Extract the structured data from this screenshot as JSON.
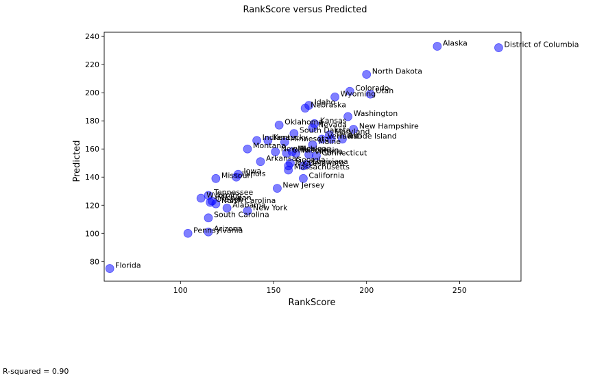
{
  "chart_data": {
    "type": "scatter",
    "title": "RankScore versus Predicted",
    "xlabel": "RankScore",
    "ylabel": "Predicted",
    "xlim": [
      59,
      283
    ],
    "ylim": [
      66,
      243
    ],
    "xticks": [
      100,
      150,
      200,
      250
    ],
    "yticks": [
      80,
      100,
      120,
      140,
      160,
      180,
      200,
      220,
      240
    ],
    "grid": false,
    "marker_color": "#0000ff",
    "points": [
      {
        "label": "Alaska",
        "x": 238,
        "y": 233
      },
      {
        "label": "District of Columbia",
        "x": 271,
        "y": 232
      },
      {
        "label": "North Dakota",
        "x": 200,
        "y": 213
      },
      {
        "label": "Colorado",
        "x": 191,
        "y": 201
      },
      {
        "label": "Utah",
        "x": 202,
        "y": 199
      },
      {
        "label": "Wyoming",
        "x": 183,
        "y": 197
      },
      {
        "label": "Idaho",
        "x": 169,
        "y": 191
      },
      {
        "label": "Nebraska",
        "x": 167,
        "y": 189
      },
      {
        "label": "Washington",
        "x": 190,
        "y": 183
      },
      {
        "label": "Oklahoma",
        "x": 153,
        "y": 177
      },
      {
        "label": "Kansas",
        "x": 172,
        "y": 178
      },
      {
        "label": "Nevada",
        "x": 171,
        "y": 175
      },
      {
        "label": "New Hampshire",
        "x": 193,
        "y": 174
      },
      {
        "label": "South Dakota",
        "x": 161,
        "y": 171
      },
      {
        "label": "Maryland",
        "x": 180,
        "y": 170
      },
      {
        "label": "Rhode Island",
        "x": 187,
        "y": 167
      },
      {
        "label": "Vermont",
        "x": 176,
        "y": 167
      },
      {
        "label": "Hawaii",
        "x": 181,
        "y": 167
      },
      {
        "label": "Indiana",
        "x": 141,
        "y": 166
      },
      {
        "label": "Kentucky",
        "x": 147,
        "y": 166
      },
      {
        "label": "Minnesota",
        "x": 156,
        "y": 165
      },
      {
        "label": "Maine",
        "x": 171,
        "y": 163
      },
      {
        "label": "Montana",
        "x": 136,
        "y": 160
      },
      {
        "label": "New Mexico",
        "x": 151,
        "y": 158
      },
      {
        "label": "Michigan",
        "x": 160,
        "y": 158
      },
      {
        "label": "Wisconsin",
        "x": 162,
        "y": 157
      },
      {
        "label": "Ohio",
        "x": 157,
        "y": 157
      },
      {
        "label": "Virginia",
        "x": 169,
        "y": 156
      },
      {
        "label": "Connecticut",
        "x": 173,
        "y": 155
      },
      {
        "label": "Arkansas",
        "x": 143,
        "y": 151
      },
      {
        "label": "Georgia",
        "x": 159,
        "y": 150
      },
      {
        "label": "Louisiana",
        "x": 168,
        "y": 149
      },
      {
        "label": "Texas",
        "x": 158,
        "y": 148
      },
      {
        "label": "Delaware",
        "x": 166,
        "y": 148
      },
      {
        "label": "Massachusetts",
        "x": 158,
        "y": 145
      },
      {
        "label": "Iowa",
        "x": 131,
        "y": 142
      },
      {
        "label": "Illinois",
        "x": 130,
        "y": 140
      },
      {
        "label": "Missouri",
        "x": 119,
        "y": 139
      },
      {
        "label": "California",
        "x": 166,
        "y": 139
      },
      {
        "label": "New Jersey",
        "x": 152,
        "y": 132
      },
      {
        "label": "Tennessee",
        "x": 115,
        "y": 127
      },
      {
        "label": "Wyoming",
        "x": 111,
        "y": 125
      },
      {
        "label": "Michigan",
        "x": 117,
        "y": 123
      },
      {
        "label": "Oregon",
        "x": 116,
        "y": 122
      },
      {
        "label": "North Carolina",
        "x": 119,
        "y": 121
      },
      {
        "label": "Alabama",
        "x": 125,
        "y": 118
      },
      {
        "label": "New York",
        "x": 136,
        "y": 116
      },
      {
        "label": "South Carolina",
        "x": 115,
        "y": 111
      },
      {
        "label": "Pennsylvania",
        "x": 104,
        "y": 100
      },
      {
        "label": "Arizona",
        "x": 115,
        "y": 101
      },
      {
        "label": "Florida",
        "x": 62,
        "y": 75
      }
    ]
  },
  "footer": {
    "r_squared_text": "R-squared = 0.90"
  }
}
